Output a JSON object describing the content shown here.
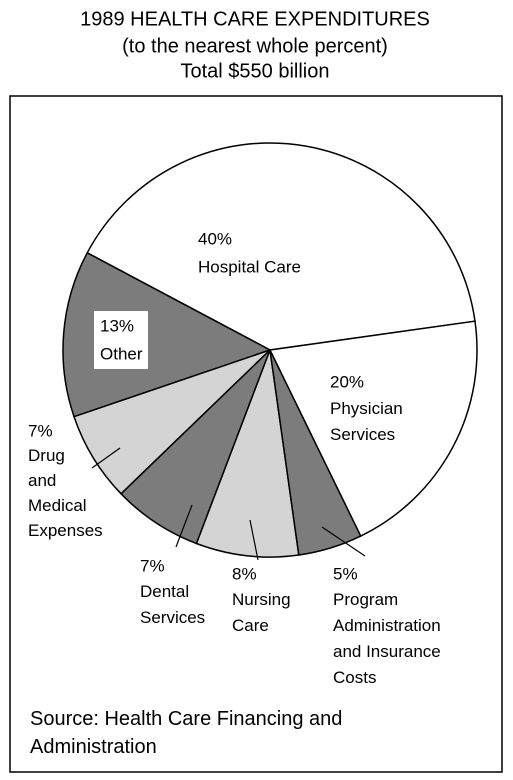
{
  "chart_data": {
    "type": "pie",
    "title": "1989 HEALTH CARE EXPENDITURES",
    "subtitle": "(to the nearest whole percent)",
    "total_label": "Total $550 billion",
    "categories": [
      "Hospital Care",
      "Other",
      "Drug\nand\nMedical\nExpenses",
      "Dental\nServices",
      "Nursing\nCare",
      "Program\nAdministration\nand Insurance\nCosts",
      "Physician\nServices"
    ],
    "values": [
      40,
      13,
      7,
      7,
      8,
      5,
      20
    ],
    "value_labels": [
      "40%",
      "13%",
      "7%",
      "7%",
      "8%",
      "5%",
      "20%"
    ],
    "colors": [
      "#ffffff",
      "#7c7c7c",
      "#d4d4d4",
      "#7c7c7c",
      "#d4d4d4",
      "#7c7c7c",
      "#ffffff"
    ],
    "source": "Source: Health Care Financing and\nAdministration"
  }
}
